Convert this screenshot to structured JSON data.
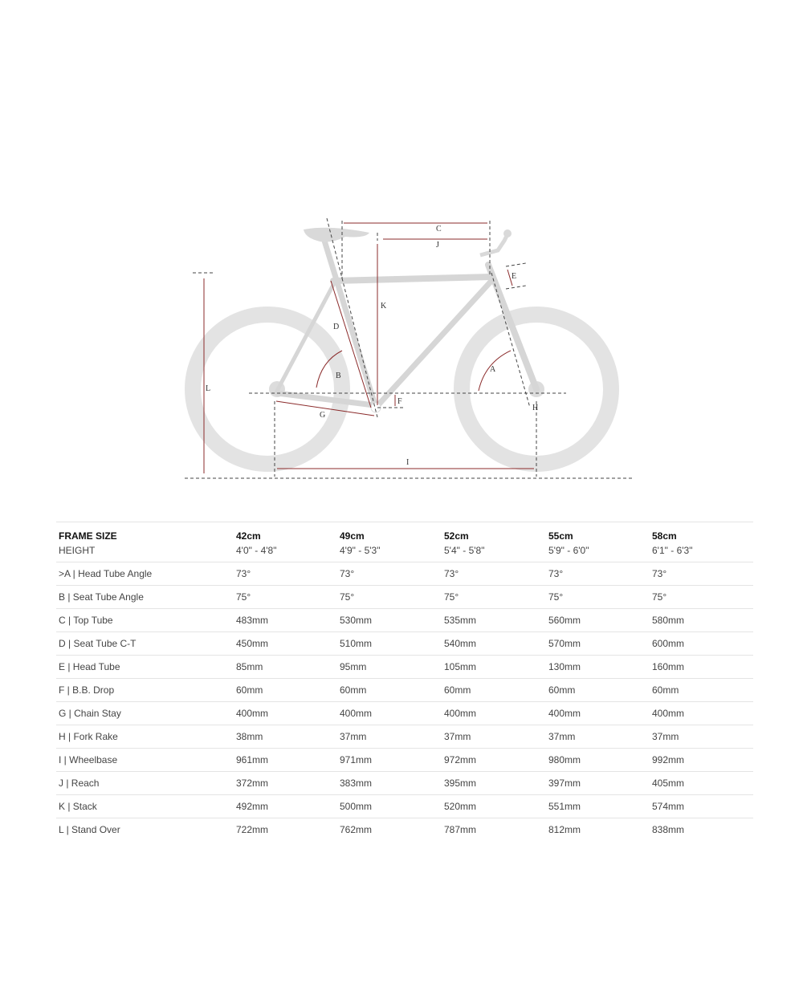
{
  "diagram": {
    "labels": {
      "A": "A",
      "B": "B",
      "C": "C",
      "D": "D",
      "E": "E",
      "F": "F",
      "G": "G",
      "H": "H",
      "I": "I",
      "J": "J",
      "K": "K",
      "L": "L"
    },
    "colors": {
      "dimension": "#8b2b2b",
      "frame": "#d6d6d6",
      "guide": "#444444"
    }
  },
  "table": {
    "header": {
      "label": "FRAME SIZE",
      "sizes": [
        "42cm",
        "49cm",
        "52cm",
        "55cm",
        "58cm"
      ]
    },
    "height": {
      "label": "HEIGHT",
      "values": [
        "4'0\" - 4'8\"",
        "4'9\" - 5'3\"",
        "5'4\" - 5'8\"",
        "5'9\" - 6'0\"",
        "6'1\" - 6'3\""
      ]
    },
    "rows": [
      {
        "label": ">A | Head Tube Angle",
        "values": [
          "73°",
          "73°",
          "73°",
          "73°",
          "73°"
        ]
      },
      {
        "label": "B | Seat Tube Angle",
        "values": [
          "75°",
          "75°",
          "75°",
          "75°",
          "75°"
        ]
      },
      {
        "label": "C | Top Tube",
        "values": [
          "483mm",
          "530mm",
          "535mm",
          "560mm",
          "580mm"
        ]
      },
      {
        "label": "D | Seat Tube C-T",
        "values": [
          "450mm",
          "510mm",
          "540mm",
          "570mm",
          "600mm"
        ]
      },
      {
        "label": "E | Head Tube",
        "values": [
          "85mm",
          "95mm",
          "105mm",
          "130mm",
          "160mm"
        ]
      },
      {
        "label": "F | B.B. Drop",
        "values": [
          "60mm",
          "60mm",
          "60mm",
          "60mm",
          "60mm"
        ]
      },
      {
        "label": "G | Chain Stay",
        "values": [
          "400mm",
          "400mm",
          "400mm",
          "400mm",
          "400mm"
        ]
      },
      {
        "label": "H | Fork Rake",
        "values": [
          "38mm",
          "37mm",
          "37mm",
          "37mm",
          "37mm"
        ]
      },
      {
        "label": "I | Wheelbase",
        "values": [
          "961mm",
          "971mm",
          "972mm",
          "980mm",
          "992mm"
        ]
      },
      {
        "label": "J | Reach",
        "values": [
          "372mm",
          "383mm",
          "395mm",
          "397mm",
          "405mm"
        ]
      },
      {
        "label": "K | Stack",
        "values": [
          "492mm",
          "500mm",
          "520mm",
          "551mm",
          "574mm"
        ]
      },
      {
        "label": "L | Stand Over",
        "values": [
          "722mm",
          "762mm",
          "787mm",
          "812mm",
          "838mm"
        ]
      }
    ]
  }
}
